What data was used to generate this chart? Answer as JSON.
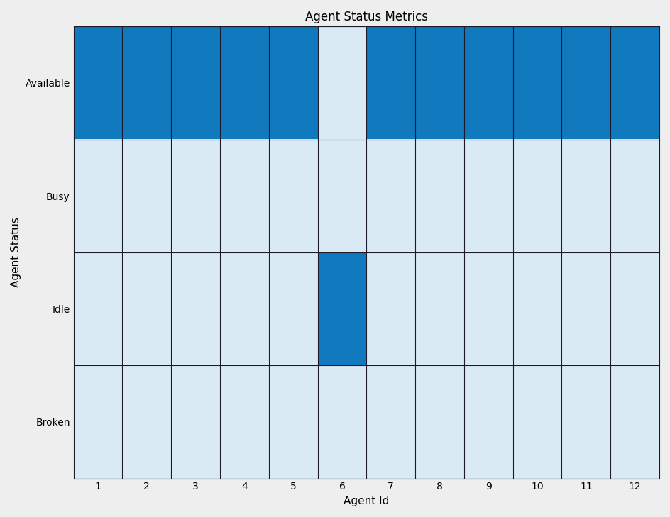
{
  "title": "Agent Status Metrics",
  "xlabel": "Agent Id",
  "ylabel": "Agent Status",
  "y_labels": [
    "Available",
    "Busy",
    "Idle",
    "Broken"
  ],
  "x_labels": [
    "1",
    "2",
    "3",
    "4",
    "5",
    "6",
    "7",
    "8",
    "9",
    "10",
    "11",
    "12"
  ],
  "data": [
    [
      1,
      1,
      1,
      1,
      1,
      0,
      1,
      1,
      1,
      1,
      1,
      1
    ],
    [
      0,
      0,
      0,
      0,
      0,
      0,
      0,
      0,
      0,
      0,
      0,
      0
    ],
    [
      0,
      0,
      0,
      0,
      0,
      1,
      0,
      0,
      0,
      0,
      0,
      0
    ],
    [
      0,
      0,
      0,
      0,
      0,
      0,
      0,
      0,
      0,
      0,
      0,
      0
    ]
  ],
  "color_low": "#daeaf5",
  "color_high": "#1179be",
  "background_color": "#eeeeee",
  "title_fontsize": 12,
  "label_fontsize": 11,
  "tick_fontsize": 10,
  "figsize": [
    9.44,
    7.29
  ],
  "dpi": 100
}
